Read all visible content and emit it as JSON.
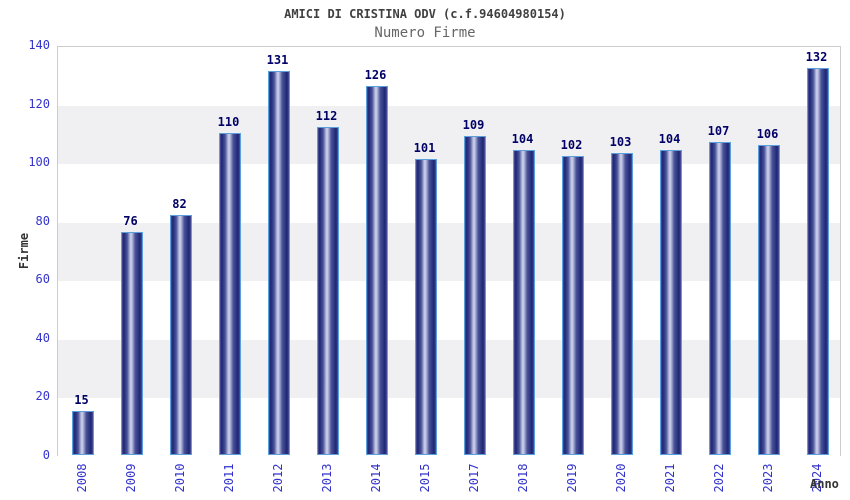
{
  "chart_data": {
    "type": "bar",
    "title": "AMICI DI CRISTINA ODV (c.f.94604980154)",
    "subtitle": "Numero Firme",
    "xlabel": "Anno",
    "ylabel": "Firme",
    "categories": [
      "2008",
      "2009",
      "2010",
      "2011",
      "2012",
      "2013",
      "2014",
      "2015",
      "2017",
      "2018",
      "2019",
      "2020",
      "2021",
      "2022",
      "2023",
      "2024"
    ],
    "values": [
      15,
      76,
      82,
      110,
      131,
      112,
      126,
      101,
      109,
      104,
      102,
      103,
      104,
      107,
      106,
      132
    ],
    "y_ticks": [
      0,
      20,
      40,
      60,
      80,
      100,
      120,
      140
    ],
    "ylim": [
      0,
      140
    ],
    "grid": "alternating-horizontal-bands",
    "legend": "none",
    "colors": {
      "tick_label": "#3333cc",
      "value_label": "#000066",
      "bar_border": "#5b9fdd",
      "bar_dark": "#1e2574",
      "bar_mid": "#4a5399",
      "bar_light": "#c5cae6",
      "band_gray": "#f0f0f2",
      "plot_border": "#cccccc",
      "title": "#404040",
      "subtitle": "#666666",
      "axis_title": "#333333"
    }
  }
}
